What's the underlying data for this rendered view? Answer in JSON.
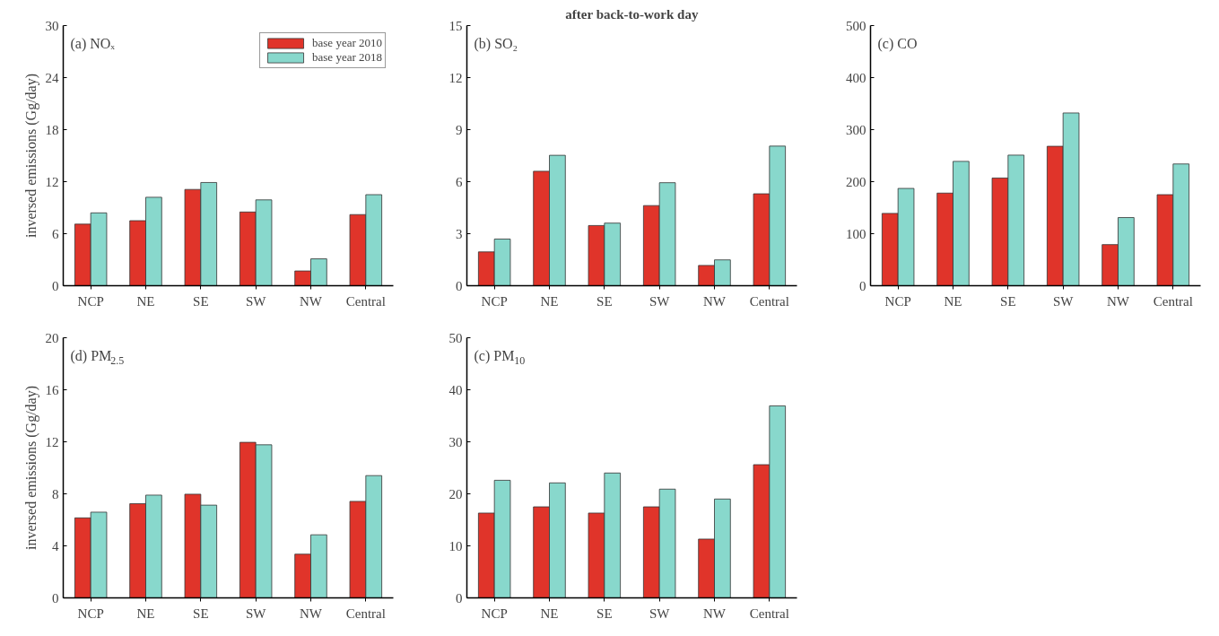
{
  "chart_data": [
    {
      "type": "bar",
      "annotations": [
        "(a) NOₓ"
      ],
      "ylabel": "inversed emissions (Gg/day)",
      "categories": [
        "NCP",
        "NE",
        "SE",
        "SW",
        "NW",
        "Central"
      ],
      "ylim": [
        0,
        30
      ],
      "yticks": [
        0,
        6,
        12,
        18,
        24,
        30
      ],
      "grid": false,
      "legend": "top right",
      "series": [
        {
          "name": "base year 2010",
          "color": "#e0342a",
          "values": [
            7.1,
            7.5,
            11.1,
            8.5,
            1.7,
            8.2
          ]
        },
        {
          "name": "base year 2018",
          "color": "#88d8cc",
          "values": [
            8.4,
            10.2,
            11.9,
            9.9,
            3.1,
            10.5
          ]
        }
      ]
    },
    {
      "type": "bar",
      "title": "after back-to-work day",
      "annotations": [
        "(b) SO₂"
      ],
      "categories": [
        "NCP",
        "NE",
        "SE",
        "SW",
        "NW",
        "Central"
      ],
      "ylim": [
        0,
        15
      ],
      "yticks": [
        0,
        3,
        6,
        9,
        12,
        15
      ],
      "grid": false,
      "series": [
        {
          "color": "#e0342a",
          "values": [
            1.95,
            6.6,
            3.47,
            4.62,
            1.17,
            5.3
          ]
        },
        {
          "color": "#88d8cc",
          "values": [
            2.69,
            7.52,
            3.61,
            5.94,
            1.49,
            8.05
          ]
        }
      ]
    },
    {
      "type": "bar",
      "annotations": [
        "(c) CO"
      ],
      "categories": [
        "NCP",
        "NE",
        "SE",
        "SW",
        "NW",
        "Central"
      ],
      "ylim": [
        0,
        500
      ],
      "yticks": [
        0,
        100,
        200,
        300,
        400,
        500
      ],
      "grid": false,
      "series": [
        {
          "color": "#e0342a",
          "values": [
            139,
            178,
            207,
            268,
            79,
            175
          ]
        },
        {
          "color": "#88d8cc",
          "values": [
            187,
            239,
            251,
            332,
            131,
            234
          ]
        }
      ]
    },
    {
      "type": "bar",
      "annotations": [
        "(d) PM$_{2.5}$"
      ],
      "ylabel": "inversed emissions (Gg/day)",
      "categories": [
        "NCP",
        "NE",
        "SE",
        "SW",
        "NW",
        "Central"
      ],
      "ylim": [
        0,
        20
      ],
      "yticks": [
        0,
        4,
        8,
        12,
        16,
        20
      ],
      "grid": false,
      "series": [
        {
          "color": "#e0342a",
          "values": [
            6.15,
            7.24,
            7.97,
            11.96,
            3.36,
            7.42
          ]
        },
        {
          "color": "#88d8cc",
          "values": [
            6.59,
            7.9,
            7.13,
            11.77,
            4.85,
            9.4
          ]
        }
      ]
    },
    {
      "type": "bar",
      "annotations": [
        "(c) PM$_{10}$"
      ],
      "categories": [
        "NCP",
        "NE",
        "SE",
        "SW",
        "NW",
        "Central"
      ],
      "ylim": [
        0,
        50
      ],
      "yticks": [
        0,
        10,
        20,
        30,
        40,
        50
      ],
      "grid": false,
      "series": [
        {
          "color": "#e0342a",
          "values": [
            16.3,
            17.5,
            16.3,
            17.5,
            11.3,
            25.6
          ]
        },
        {
          "color": "#88d8cc",
          "values": [
            22.6,
            22.1,
            24.0,
            20.9,
            19.0,
            36.9
          ]
        }
      ]
    }
  ]
}
